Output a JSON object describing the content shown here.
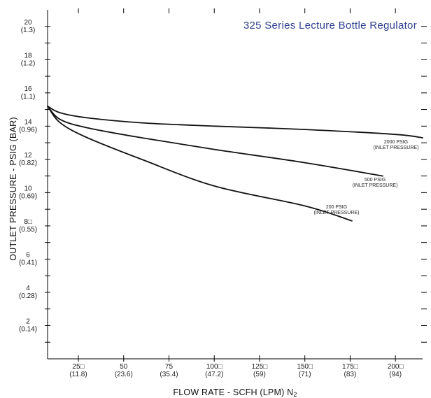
{
  "chart_data": {
    "type": "line",
    "title": "325 Series Lecture Bottle Regulator",
    "xlabel": "FLOW RATE - SCFH (LPM) N",
    "xlabel_sub": "2",
    "ylabel": "OUTLET PRESSURE - PSIG (BAR)",
    "xlim": [
      8,
      215
    ],
    "ylim": [
      0,
      21
    ],
    "grid": false,
    "x_ticks": [
      {
        "value": 25,
        "label": "25□",
        "sublabel": "(11.8)"
      },
      {
        "value": 50,
        "label": "50",
        "sublabel": "(23.6)"
      },
      {
        "value": 75,
        "label": "75",
        "sublabel": "(35.4)"
      },
      {
        "value": 100,
        "label": "100□",
        "sublabel": "(47.2)"
      },
      {
        "value": 125,
        "label": "125□",
        "sublabel": "(59)"
      },
      {
        "value": 150,
        "label": "150□",
        "sublabel": "(71)"
      },
      {
        "value": 175,
        "label": "175□",
        "sublabel": "(83)"
      },
      {
        "value": 200,
        "label": "200□",
        "sublabel": "(94)"
      }
    ],
    "y_ticks": [
      {
        "value": 2,
        "label": "2",
        "sublabel": "(0.14)"
      },
      {
        "value": 4,
        "label": "4",
        "sublabel": "(0.28)"
      },
      {
        "value": 6,
        "label": "6",
        "sublabel": "(0.41)"
      },
      {
        "value": 8,
        "label": "8□",
        "sublabel": "(0.55)"
      },
      {
        "value": 10,
        "label": "10",
        "sublabel": "(0.69)"
      },
      {
        "value": 12,
        "label": "12",
        "sublabel": "(0.82)"
      },
      {
        "value": 14,
        "label": "14",
        "sublabel": "(0.96)"
      },
      {
        "value": 16,
        "label": "16",
        "sublabel": "(1.1)"
      },
      {
        "value": 18,
        "label": "18",
        "sublabel": "(1.2)"
      },
      {
        "value": 20,
        "label": "20",
        "sublabel": "(1.3)"
      }
    ],
    "series": [
      {
        "name": "2000 PSIG (INLET PRESSURE)",
        "label_line1": "2000 PSIG",
        "label_line2": "(INLET PRESSURE)",
        "x": [
          8,
          15,
          30,
          60,
          100,
          150,
          200,
          215
        ],
        "y": [
          15.2,
          14.8,
          14.5,
          14.2,
          14.0,
          13.8,
          13.5,
          13.3
        ]
      },
      {
        "name": "500 PSIG (INLET PRESSURE)",
        "label_line1": "500 PSIG",
        "label_line2": "(INLET PRESSURE)",
        "x": [
          8,
          15,
          30,
          60,
          100,
          150,
          193
        ],
        "y": [
          15.2,
          14.4,
          13.9,
          13.3,
          12.6,
          11.8,
          11.0
        ]
      },
      {
        "name": "200 PSIG (INLET PRESSURE)",
        "label_line1": "200 PSIG",
        "label_line2": "(INLET PRESSURE)",
        "x": [
          8,
          15,
          30,
          60,
          100,
          150,
          176
        ],
        "y": [
          15.2,
          14.2,
          13.3,
          12.0,
          10.4,
          9.2,
          8.3
        ]
      }
    ]
  }
}
